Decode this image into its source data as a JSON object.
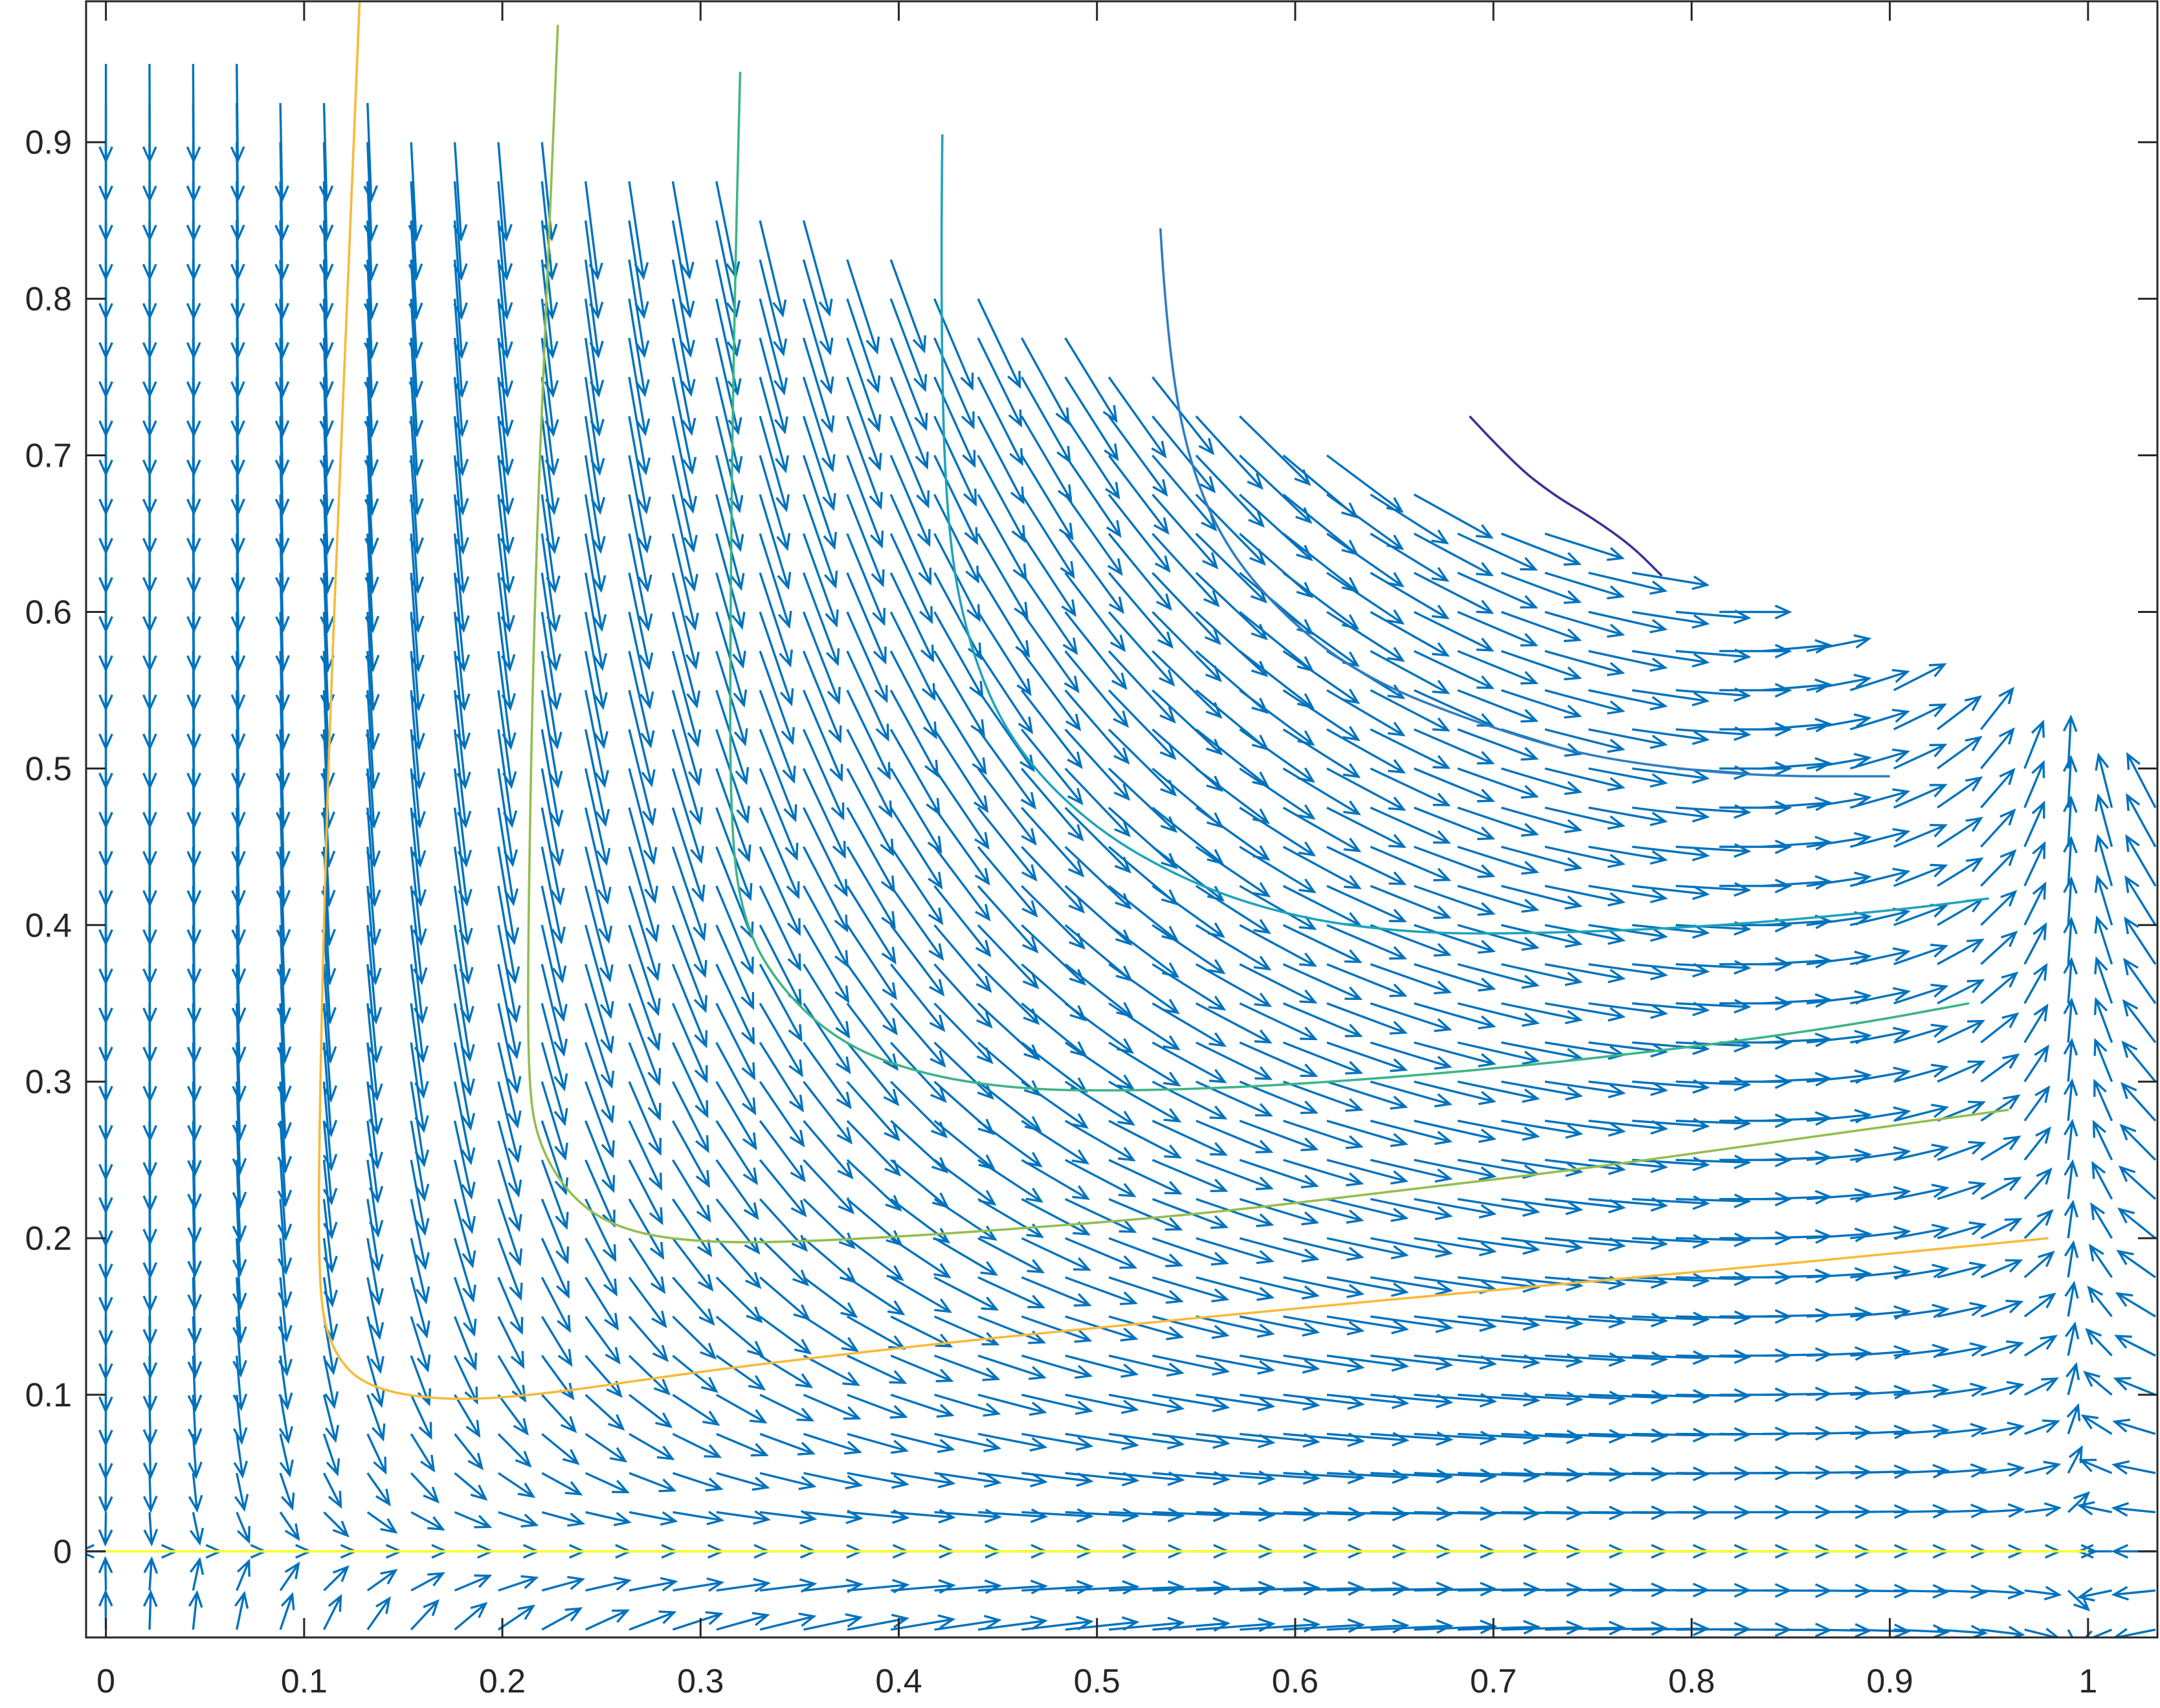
{
  "chart_data": {
    "type": "quiver",
    "title": "",
    "xlabel": "",
    "ylabel": "",
    "xlim": [
      -0.01,
      1.035
    ],
    "ylim": [
      -0.055,
      0.99
    ],
    "grid": false,
    "legend": "none",
    "x_ticks": [
      {
        "value": 0,
        "label": "0"
      },
      {
        "value": 0.1,
        "label": "0.1"
      },
      {
        "value": 0.2,
        "label": "0.2"
      },
      {
        "value": 0.3,
        "label": "0.3"
      },
      {
        "value": 0.4,
        "label": "0.4"
      },
      {
        "value": 0.5,
        "label": "0.5"
      },
      {
        "value": 0.6,
        "label": "0.6"
      },
      {
        "value": 0.7,
        "label": "0.7"
      },
      {
        "value": 0.8,
        "label": "0.8"
      },
      {
        "value": 0.9,
        "label": "0.9"
      },
      {
        "value": 1,
        "label": "1"
      }
    ],
    "y_ticks": [
      {
        "value": 0,
        "label": "0"
      },
      {
        "value": 0.1,
        "label": "0.1"
      },
      {
        "value": 0.2,
        "label": "0.2"
      },
      {
        "value": 0.3,
        "label": "0.3"
      },
      {
        "value": 0.4,
        "label": "0.4"
      },
      {
        "value": 0.5,
        "label": "0.5"
      },
      {
        "value": 0.6,
        "label": "0.6"
      },
      {
        "value": 0.7,
        "label": "0.7"
      },
      {
        "value": 0.8,
        "label": "0.8"
      },
      {
        "value": 0.9,
        "label": "0.9"
      }
    ],
    "vector_field": {
      "color": "#0072BD",
      "grid_x_range": [
        0,
        1.035
      ],
      "grid_y_range": [
        -0.05,
        0.96
      ]
    },
    "trajectories": [
      {
        "color": "#FFFF2B",
        "points": [
          [
            0.0,
            0.0
          ],
          [
            0.1,
            0.0
          ],
          [
            0.3,
            0.0
          ],
          [
            0.5,
            0.0
          ],
          [
            0.7,
            0.0
          ],
          [
            0.9,
            0.0
          ],
          [
            1.0,
            0.0
          ]
        ]
      },
      {
        "color": "#F8BA3A",
        "points": [
          [
            0.128,
            0.99
          ],
          [
            0.12,
            0.75
          ],
          [
            0.112,
            0.5
          ],
          [
            0.108,
            0.3
          ],
          [
            0.107,
            0.17
          ],
          [
            0.113,
            0.13
          ],
          [
            0.13,
            0.105
          ],
          [
            0.17,
            0.096
          ],
          [
            0.22,
            0.1
          ],
          [
            0.3,
            0.115
          ],
          [
            0.4,
            0.13
          ],
          [
            0.5,
            0.143
          ],
          [
            0.6,
            0.155
          ],
          [
            0.7,
            0.167
          ],
          [
            0.8,
            0.178
          ],
          [
            0.9,
            0.19
          ],
          [
            0.98,
            0.2
          ]
        ]
      },
      {
        "color": "#95BD4F",
        "points": [
          [
            0.228,
            0.975
          ],
          [
            0.222,
            0.8
          ],
          [
            0.216,
            0.6
          ],
          [
            0.213,
            0.4
          ],
          [
            0.213,
            0.3
          ],
          [
            0.218,
            0.26
          ],
          [
            0.235,
            0.225
          ],
          [
            0.26,
            0.205
          ],
          [
            0.3,
            0.197
          ],
          [
            0.36,
            0.198
          ],
          [
            0.45,
            0.205
          ],
          [
            0.55,
            0.215
          ],
          [
            0.65,
            0.23
          ],
          [
            0.75,
            0.245
          ],
          [
            0.85,
            0.263
          ],
          [
            0.96,
            0.282
          ]
        ]
      },
      {
        "color": "#3EB487",
        "points": [
          [
            0.32,
            0.945
          ],
          [
            0.317,
            0.8
          ],
          [
            0.315,
            0.6
          ],
          [
            0.315,
            0.46
          ],
          [
            0.322,
            0.4
          ],
          [
            0.34,
            0.36
          ],
          [
            0.37,
            0.325
          ],
          [
            0.41,
            0.305
          ],
          [
            0.46,
            0.295
          ],
          [
            0.52,
            0.294
          ],
          [
            0.6,
            0.298
          ],
          [
            0.7,
            0.308
          ],
          [
            0.8,
            0.322
          ],
          [
            0.88,
            0.336
          ],
          [
            0.94,
            0.35
          ]
        ]
      },
      {
        "color": "#1FA4B8",
        "points": [
          [
            0.422,
            0.905
          ],
          [
            0.421,
            0.8
          ],
          [
            0.424,
            0.65
          ],
          [
            0.437,
            0.57
          ],
          [
            0.46,
            0.51
          ],
          [
            0.5,
            0.46
          ],
          [
            0.55,
            0.425
          ],
          [
            0.6,
            0.405
          ],
          [
            0.65,
            0.396
          ],
          [
            0.7,
            0.394
          ],
          [
            0.8,
            0.398
          ],
          [
            0.9,
            0.409
          ],
          [
            0.95,
            0.417
          ]
        ]
      },
      {
        "color": "#2E7DC4",
        "points": [
          [
            0.532,
            0.845
          ],
          [
            0.535,
            0.78
          ],
          [
            0.545,
            0.7
          ],
          [
            0.565,
            0.64
          ],
          [
            0.6,
            0.59
          ],
          [
            0.64,
            0.555
          ],
          [
            0.69,
            0.53
          ],
          [
            0.74,
            0.51
          ],
          [
            0.79,
            0.5
          ],
          [
            0.84,
            0.495
          ],
          [
            0.9,
            0.495
          ]
        ]
      },
      {
        "color": "#3A3196",
        "points": [
          [
            0.688,
            0.725
          ],
          [
            0.71,
            0.695
          ],
          [
            0.73,
            0.675
          ],
          [
            0.75,
            0.66
          ],
          [
            0.77,
            0.642
          ],
          [
            0.785,
            0.623
          ]
        ]
      }
    ]
  }
}
